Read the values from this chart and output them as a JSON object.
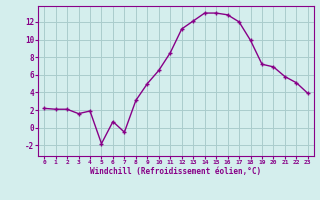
{
  "x": [
    0,
    1,
    2,
    3,
    4,
    5,
    6,
    7,
    8,
    9,
    10,
    11,
    12,
    13,
    14,
    15,
    16,
    17,
    18,
    19,
    20,
    21,
    22,
    23
  ],
  "y": [
    2.2,
    2.1,
    2.1,
    1.6,
    1.9,
    -1.8,
    0.7,
    -0.5,
    3.1,
    5.0,
    6.5,
    8.5,
    11.2,
    12.1,
    13.0,
    13.0,
    12.8,
    12.0,
    9.9,
    7.2,
    6.9,
    5.8,
    5.1,
    3.9
  ],
  "line_color": "#880088",
  "marker": "+",
  "marker_color": "#880088",
  "bg_color": "#d4eeed",
  "grid_color": "#aacccc",
  "xlabel": "Windchill (Refroidissement éolien,°C)",
  "xlabel_color": "#880088",
  "tick_color": "#880088",
  "xlim": [
    -0.5,
    23.5
  ],
  "ylim": [
    -3.2,
    13.8
  ],
  "yticks": [
    -2,
    0,
    2,
    4,
    6,
    8,
    10,
    12
  ],
  "xticks": [
    0,
    1,
    2,
    3,
    4,
    5,
    6,
    7,
    8,
    9,
    10,
    11,
    12,
    13,
    14,
    15,
    16,
    17,
    18,
    19,
    20,
    21,
    22,
    23
  ],
  "linewidth": 1.0,
  "markersize": 3.5,
  "spine_color": "#880088"
}
